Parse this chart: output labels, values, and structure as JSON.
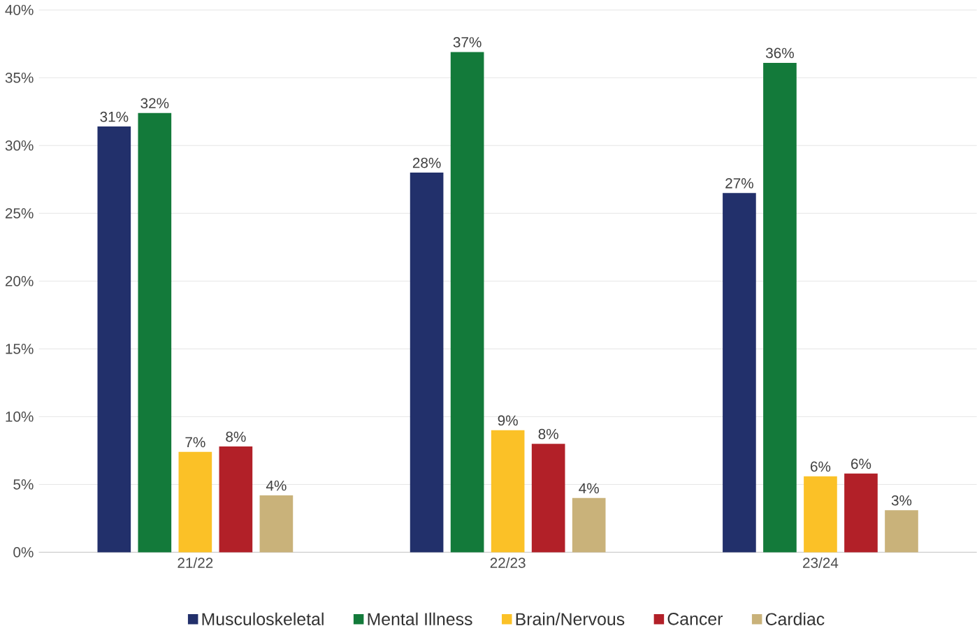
{
  "chart_data": {
    "type": "bar",
    "categories": [
      "21/22",
      "22/23",
      "23/24"
    ],
    "series": [
      {
        "name": "Musculoskeletal",
        "color": "#22306b",
        "values": [
          31.4,
          28.0,
          26.5
        ],
        "value_labels": [
          "31%",
          "28%",
          "27%"
        ]
      },
      {
        "name": "Mental Illness",
        "color": "#137a3a",
        "values": [
          32.4,
          36.9,
          36.1
        ],
        "value_labels": [
          "32%",
          "37%",
          "36%"
        ]
      },
      {
        "name": "Brain/Nervous",
        "color": "#fbc127",
        "values": [
          7.4,
          9.0,
          5.6
        ],
        "value_labels": [
          "7%",
          "9%",
          "6%"
        ]
      },
      {
        "name": "Cancer",
        "color": "#b22028",
        "values": [
          7.8,
          8.0,
          5.8
        ],
        "value_labels": [
          "8%",
          "8%",
          "6%"
        ]
      },
      {
        "name": "Cardiac",
        "color": "#c9b27a",
        "values": [
          4.2,
          4.0,
          3.1
        ],
        "value_labels": [
          "4%",
          "4%",
          "3%"
        ]
      }
    ],
    "ylim": [
      0,
      40
    ],
    "yticks": [
      {
        "value": 0,
        "label": "0%"
      },
      {
        "value": 5,
        "label": "5%"
      },
      {
        "value": 10,
        "label": "10%"
      },
      {
        "value": 15,
        "label": "15%"
      },
      {
        "value": 20,
        "label": "20%"
      },
      {
        "value": 25,
        "label": "25%"
      },
      {
        "value": 30,
        "label": "30%"
      },
      {
        "value": 35,
        "label": "35%"
      },
      {
        "value": 40,
        "label": "40%"
      }
    ],
    "grid": "y",
    "legend": "bottom"
  }
}
